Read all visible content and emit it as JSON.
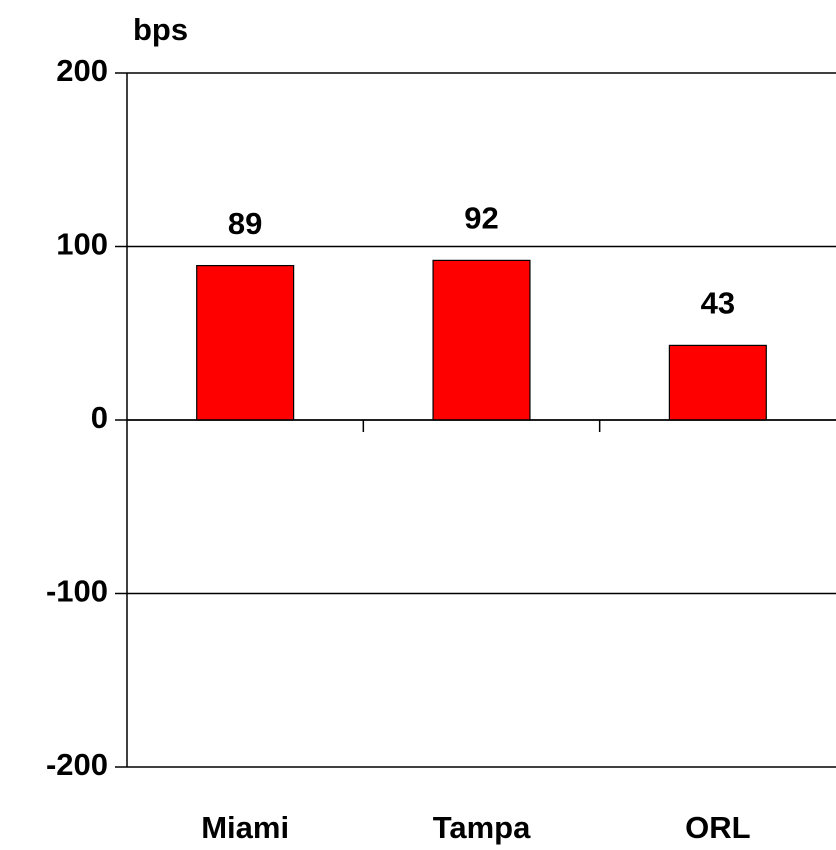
{
  "chart_data": {
    "type": "bar",
    "y_axis_label": "bps",
    "categories": [
      "Miami",
      "Tampa",
      "ORL"
    ],
    "values": [
      89,
      92,
      43
    ],
    "color": "#ff0000",
    "ylim": [
      -200,
      200
    ],
    "yticks": [
      -200,
      -100,
      0,
      100,
      200
    ],
    "grid": true
  }
}
